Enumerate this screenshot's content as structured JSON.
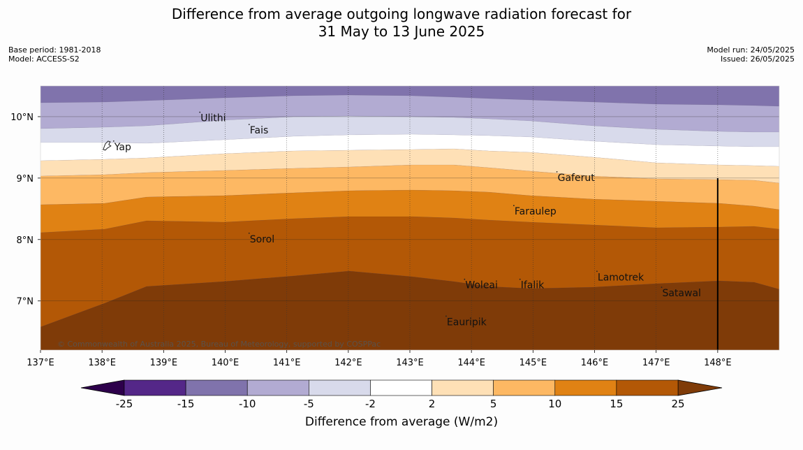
{
  "title": {
    "line1": "Difference from average outgoing longwave radiation forecast for",
    "line2": "31 May to 13 June 2025"
  },
  "meta_left": {
    "base_period": "Base period: 1981-2018",
    "model": "Model: ACCESS-S2"
  },
  "meta_right": {
    "model_run": "Model run: 24/05/2025",
    "issued": "Issued: 26/05/2025"
  },
  "copyright": "© Commonwealth of Australia 2025, Bureau of Meteorology, supported by COSPPac",
  "map": {
    "lon_range": [
      137,
      149
    ],
    "lat_range": [
      6.2,
      10.5
    ],
    "x_ticks": [
      "137°E",
      "138°E",
      "139°E",
      "140°E",
      "141°E",
      "142°E",
      "143°E",
      "144°E",
      "145°E",
      "146°E",
      "147°E",
      "148°E"
    ],
    "y_ticks": [
      "7°N",
      "8°N",
      "9°N",
      "10°N"
    ],
    "marked_longitude": 148,
    "places": [
      {
        "name": "Ulithi",
        "lon": 139.6,
        "lat": 9.97
      },
      {
        "name": "Fais",
        "lon": 140.4,
        "lat": 9.77
      },
      {
        "name": "Yap",
        "lon": 138.2,
        "lat": 9.5
      },
      {
        "name": "Gaferut",
        "lon": 145.4,
        "lat": 9.0
      },
      {
        "name": "Faraulep",
        "lon": 144.7,
        "lat": 8.45
      },
      {
        "name": "Sorol",
        "lon": 140.4,
        "lat": 8.0
      },
      {
        "name": "Woleai",
        "lon": 143.9,
        "lat": 7.25
      },
      {
        "name": "Ifalik",
        "lon": 144.8,
        "lat": 7.25
      },
      {
        "name": "Lamotrek",
        "lon": 146.05,
        "lat": 7.38
      },
      {
        "name": "Satawal",
        "lon": 147.1,
        "lat": 7.12
      },
      {
        "name": "Eauripik",
        "lon": 143.6,
        "lat": 6.65
      }
    ]
  },
  "colorbar": {
    "title": "Difference from average (W/m2)",
    "tick_labels": [
      "-25",
      "-15",
      "-10",
      "-5",
      "-2",
      "2",
      "5",
      "10",
      "15",
      "25"
    ],
    "under_color": "#2d004b",
    "over_color": "#7f3b08",
    "colors": [
      "#542788",
      "#8073ac",
      "#b2abd2",
      "#d8daeb",
      "#ffffff",
      "#fee0b6",
      "#fdb863",
      "#e08214",
      "#b35806"
    ]
  },
  "bands": {
    "levels": [
      "-10 to -15",
      "-5 to -10",
      "-2 to -5",
      "-2 to 2",
      "2 to 5",
      "5 to 10",
      "10 to 15",
      "15 to 25",
      "> 25"
    ],
    "colors": [
      "#8073ac",
      "#b2abd2",
      "#d8daeb",
      "#ffffff",
      "#fee0b6",
      "#fdb863",
      "#e08214",
      "#b35806",
      "#7f3b08"
    ]
  }
}
